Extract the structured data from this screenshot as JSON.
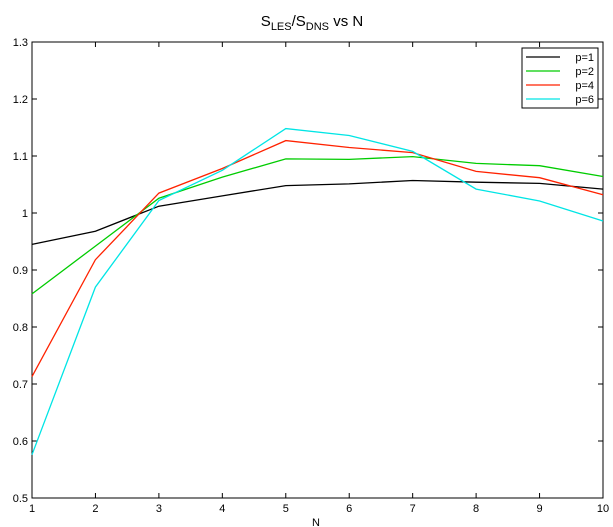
{
  "chart_data": {
    "type": "line",
    "title": {
      "main": "S",
      "sub1": "LES",
      "sep": "/S",
      "sub2": "DNS",
      "rest": " vs N"
    },
    "xlabel": "N",
    "ylabel": "",
    "xlim": [
      1,
      10
    ],
    "ylim": [
      0.5,
      1.3
    ],
    "xticks": [
      1,
      2,
      3,
      4,
      5,
      6,
      7,
      8,
      9,
      10
    ],
    "yticks": [
      0.5,
      0.6,
      0.7,
      0.8,
      0.9,
      1,
      1.1,
      1.2,
      1.3
    ],
    "grid": false,
    "legend_position": "top-right",
    "x": [
      1,
      2,
      3,
      4,
      5,
      6,
      7,
      8,
      9,
      10
    ],
    "series": [
      {
        "name": "p=1",
        "color": "#000000",
        "values": [
          0.945,
          0.968,
          1.012,
          1.03,
          1.048,
          1.051,
          1.057,
          1.054,
          1.052,
          1.042
        ]
      },
      {
        "name": "p=2",
        "color": "#00cc00",
        "values": [
          0.858,
          0.942,
          1.026,
          1.063,
          1.095,
          1.094,
          1.099,
          1.087,
          1.083,
          1.064
        ]
      },
      {
        "name": "p=4",
        "color": "#ff2200",
        "values": [
          0.713,
          0.918,
          1.035,
          1.078,
          1.127,
          1.115,
          1.106,
          1.073,
          1.062,
          1.032
        ]
      },
      {
        "name": "p=6",
        "color": "#00e5e5",
        "values": [
          0.576,
          0.87,
          1.022,
          1.075,
          1.148,
          1.136,
          1.108,
          1.042,
          1.021,
          0.986
        ]
      }
    ]
  }
}
